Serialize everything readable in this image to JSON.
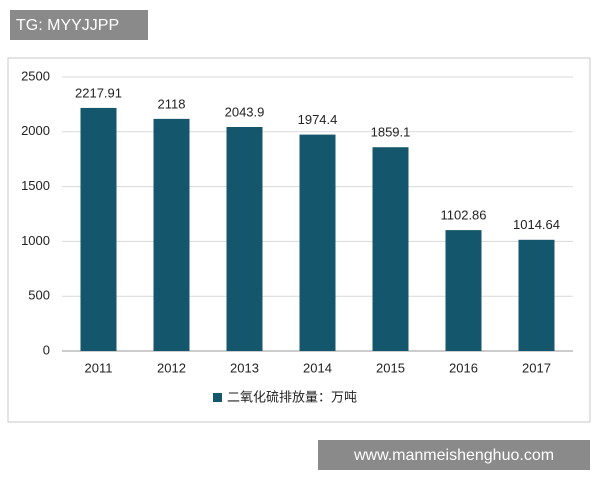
{
  "watermark_top": "TG: MYYJJPP",
  "watermark_bottom": "www.manmeishenghuo.com",
  "chart_data": {
    "type": "bar",
    "categories": [
      "2011",
      "2012",
      "2013",
      "2014",
      "2015",
      "2016",
      "2017"
    ],
    "series": [
      {
        "name": "二氧化硫排放量：万吨",
        "color": "#14566b",
        "values": [
          2217.91,
          2118,
          2043.9,
          1974.4,
          1859.1,
          1102.86,
          1014.64
        ]
      }
    ],
    "ylim": [
      0,
      2500
    ],
    "yticks": [
      0,
      500,
      1000,
      1500,
      2000,
      2500
    ],
    "grid": true,
    "legend": "bottom"
  }
}
